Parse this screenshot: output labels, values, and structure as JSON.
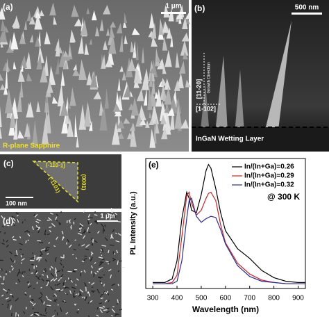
{
  "panels": {
    "a": {
      "label": "(a)",
      "scale": "1 μm",
      "substrate": "R-plane Sapphire"
    },
    "b": {
      "label": "(b)",
      "scale": "500 nm",
      "direction1": "[11-20]",
      "growth": "Growth Direction",
      "direction2": "[1-102]",
      "layer": "InGaN Wetting Layer"
    },
    "c": {
      "label": "(c)",
      "facet1": "(-110-1)",
      "facet2": "(0001)",
      "facet3": "(-1101)",
      "scale": "100 nm"
    },
    "d": {
      "label": "(d)",
      "scale": "1 μm"
    }
  },
  "chart_data": {
    "type": "line",
    "panel_label": "(e)",
    "xlabel": "Wavelength (nm)",
    "ylabel": "PL Intensity (a.u.)",
    "annotation": "@ 300 K",
    "x": [
      300,
      350,
      380,
      400,
      420,
      440,
      450,
      460,
      480,
      500,
      520,
      530,
      540,
      560,
      580,
      600,
      650,
      700,
      750,
      800,
      850,
      900,
      930
    ],
    "series": [
      {
        "name": "In/(In+Ga)=0.26",
        "color": "#000000",
        "values": [
          0.02,
          0.02,
          0.05,
          0.2,
          0.55,
          0.77,
          0.72,
          0.62,
          0.6,
          0.75,
          0.95,
          1.0,
          0.97,
          0.8,
          0.6,
          0.45,
          0.3,
          0.22,
          0.12,
          0.06,
          0.03,
          0.02,
          0.02
        ]
      },
      {
        "name": "In/(In+Ga)=0.29",
        "color": "#d42020",
        "values": [
          0.01,
          0.01,
          0.02,
          0.08,
          0.4,
          0.74,
          0.77,
          0.68,
          0.58,
          0.62,
          0.72,
          0.76,
          0.77,
          0.7,
          0.5,
          0.35,
          0.18,
          0.09,
          0.04,
          0.02,
          0.01,
          0.01,
          0.01
        ]
      },
      {
        "name": "In/(In+Ga)=0.32",
        "color": "#2a2a9a",
        "values": [
          0.01,
          0.01,
          0.01,
          0.03,
          0.2,
          0.55,
          0.7,
          0.72,
          0.57,
          0.52,
          0.55,
          0.56,
          0.57,
          0.56,
          0.46,
          0.34,
          0.16,
          0.07,
          0.03,
          0.02,
          0.01,
          0.01,
          0.01
        ]
      }
    ],
    "xlim": [
      271,
      930
    ],
    "ylim": [
      -0.03,
      1.05
    ],
    "xticks": [
      300,
      400,
      500,
      600,
      700,
      800,
      900
    ]
  }
}
